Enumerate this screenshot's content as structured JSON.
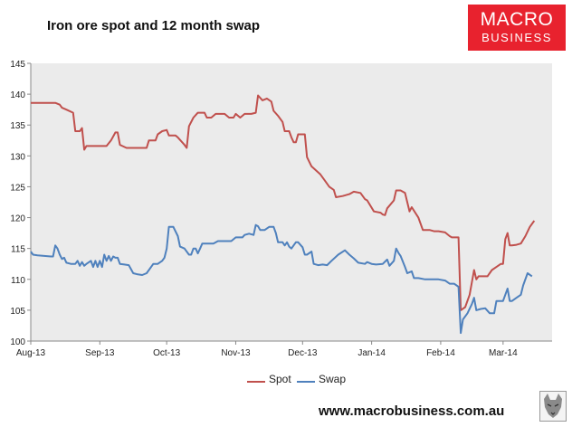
{
  "title": "Iron ore spot and 12 month swap",
  "logo": {
    "line1": "MACRO",
    "line2": "BUSINESS",
    "color": "#e8222e"
  },
  "footer": {
    "url": "www.macrobusiness.com.au",
    "icon": "wolf-icon"
  },
  "chart_data": {
    "type": "line",
    "title": "Iron ore spot and 12 month swap",
    "xlabel": "",
    "ylabel": "",
    "ylim": [
      100,
      145
    ],
    "yticks": [
      "145",
      "140",
      "135",
      "130",
      "125",
      "120",
      "115",
      "110",
      "105",
      "100"
    ],
    "xticks": [
      "Aug-13",
      "Sep-13",
      "Oct-13",
      "Nov-13",
      "Dec-13",
      "Jan-14",
      "Feb-14",
      "Mar-14"
    ],
    "x_range": [
      "2013-08-01",
      "2014-03-23"
    ],
    "grid": false,
    "legend_position": "bottom",
    "plot_background": "#ebebeb",
    "series": [
      {
        "name": "Spot",
        "color": "#c0504d",
        "points": [
          [
            "2013-08-01",
            138.6
          ],
          [
            "2013-08-05",
            138.6
          ],
          [
            "2013-08-09",
            138.6
          ],
          [
            "2013-08-12",
            138.6
          ],
          [
            "2013-08-14",
            138.3
          ],
          [
            "2013-08-15",
            137.8
          ],
          [
            "2013-08-17",
            137.5
          ],
          [
            "2013-08-20",
            137.0
          ],
          [
            "2013-08-21",
            134.0
          ],
          [
            "2013-08-23",
            134.0
          ],
          [
            "2013-08-24",
            134.5
          ],
          [
            "2013-08-25",
            131.0
          ],
          [
            "2013-08-26",
            131.6
          ],
          [
            "2013-08-30",
            131.6
          ],
          [
            "2013-09-04",
            131.6
          ],
          [
            "2013-09-06",
            132.5
          ],
          [
            "2013-09-08",
            133.8
          ],
          [
            "2013-09-09",
            133.8
          ],
          [
            "2013-09-10",
            131.8
          ],
          [
            "2013-09-13",
            131.3
          ],
          [
            "2013-09-18",
            131.3
          ],
          [
            "2013-09-22",
            131.3
          ],
          [
            "2013-09-23",
            132.5
          ],
          [
            "2013-09-26",
            132.5
          ],
          [
            "2013-09-27",
            133.5
          ],
          [
            "2013-09-29",
            134.0
          ],
          [
            "2013-10-01",
            134.2
          ],
          [
            "2013-10-02",
            133.3
          ],
          [
            "2013-10-05",
            133.3
          ],
          [
            "2013-10-06",
            133.0
          ],
          [
            "2013-10-09",
            131.8
          ],
          [
            "2013-10-10",
            131.3
          ],
          [
            "2013-10-11",
            134.8
          ],
          [
            "2013-10-13",
            136.2
          ],
          [
            "2013-10-15",
            137.0
          ],
          [
            "2013-10-18",
            137.0
          ],
          [
            "2013-10-19",
            136.2
          ],
          [
            "2013-10-21",
            136.2
          ],
          [
            "2013-10-23",
            136.8
          ],
          [
            "2013-10-27",
            136.8
          ],
          [
            "2013-10-29",
            136.2
          ],
          [
            "2013-10-31",
            136.2
          ],
          [
            "2013-11-01",
            136.8
          ],
          [
            "2013-11-03",
            136.2
          ],
          [
            "2013-11-05",
            136.8
          ],
          [
            "2013-11-08",
            136.8
          ],
          [
            "2013-11-10",
            137.0
          ],
          [
            "2013-11-11",
            139.8
          ],
          [
            "2013-11-13",
            139.0
          ],
          [
            "2013-11-15",
            139.3
          ],
          [
            "2013-11-17",
            138.8
          ],
          [
            "2013-11-18",
            137.3
          ],
          [
            "2013-11-20",
            136.5
          ],
          [
            "2013-11-22",
            135.5
          ],
          [
            "2013-11-23",
            134.0
          ],
          [
            "2013-11-25",
            134.0
          ],
          [
            "2013-11-26",
            133.0
          ],
          [
            "2013-11-27",
            132.2
          ],
          [
            "2013-11-28",
            132.2
          ],
          [
            "2013-11-29",
            133.5
          ],
          [
            "2013-12-02",
            133.5
          ],
          [
            "2013-12-03",
            129.8
          ],
          [
            "2013-12-05",
            128.3
          ],
          [
            "2013-12-09",
            127.0
          ],
          [
            "2013-12-11",
            126.0
          ],
          [
            "2013-12-13",
            125.0
          ],
          [
            "2013-12-15",
            124.5
          ],
          [
            "2013-12-16",
            123.3
          ],
          [
            "2013-12-19",
            123.5
          ],
          [
            "2013-12-22",
            123.8
          ],
          [
            "2013-12-24",
            124.2
          ],
          [
            "2013-12-27",
            124.0
          ],
          [
            "2013-12-29",
            123.0
          ],
          [
            "2013-12-30",
            122.8
          ],
          [
            "2014-01-02",
            121.0
          ],
          [
            "2014-01-05",
            120.8
          ],
          [
            "2014-01-06",
            120.5
          ],
          [
            "2014-01-07",
            120.4
          ],
          [
            "2014-01-08",
            121.5
          ],
          [
            "2014-01-11",
            122.8
          ],
          [
            "2014-01-12",
            124.4
          ],
          [
            "2014-01-14",
            124.4
          ],
          [
            "2014-01-16",
            124.0
          ],
          [
            "2014-01-18",
            121.0
          ],
          [
            "2014-01-19",
            121.7
          ],
          [
            "2014-01-22",
            120.0
          ],
          [
            "2014-01-24",
            118.0
          ],
          [
            "2014-01-27",
            118.0
          ],
          [
            "2014-01-29",
            117.8
          ],
          [
            "2014-01-31",
            117.8
          ],
          [
            "2014-02-03",
            117.6
          ],
          [
            "2014-02-05",
            117.0
          ],
          [
            "2014-02-06",
            116.8
          ],
          [
            "2014-02-09",
            116.8
          ],
          [
            "2014-02-10",
            105.0
          ],
          [
            "2014-02-12",
            105.5
          ],
          [
            "2014-02-14",
            107.5
          ],
          [
            "2014-02-16",
            111.5
          ],
          [
            "2014-02-17",
            110.0
          ],
          [
            "2014-02-18",
            110.5
          ],
          [
            "2014-02-20",
            110.5
          ],
          [
            "2014-02-22",
            110.5
          ],
          [
            "2014-02-24",
            111.5
          ],
          [
            "2014-02-26",
            112.0
          ],
          [
            "2014-02-28",
            112.5
          ],
          [
            "2014-03-01",
            112.5
          ],
          [
            "2014-03-02",
            116.5
          ],
          [
            "2014-03-03",
            117.5
          ],
          [
            "2014-03-04",
            115.5
          ],
          [
            "2014-03-05",
            115.5
          ],
          [
            "2014-03-07",
            115.6
          ],
          [
            "2014-03-09",
            115.8
          ],
          [
            "2014-03-11",
            117.0
          ],
          [
            "2014-03-13",
            118.5
          ],
          [
            "2014-03-15",
            119.5
          ]
        ]
      },
      {
        "name": "Swap",
        "color": "#4f81bd",
        "points": [
          [
            "2013-08-01",
            114.5
          ],
          [
            "2013-08-02",
            114.0
          ],
          [
            "2013-08-04",
            113.9
          ],
          [
            "2013-08-07",
            113.8
          ],
          [
            "2013-08-10",
            113.7
          ],
          [
            "2013-08-11",
            113.7
          ],
          [
            "2013-08-12",
            115.5
          ],
          [
            "2013-08-13",
            115.0
          ],
          [
            "2013-08-14",
            114.0
          ],
          [
            "2013-08-15",
            113.3
          ],
          [
            "2013-08-16",
            113.5
          ],
          [
            "2013-08-17",
            112.7
          ],
          [
            "2013-08-19",
            112.5
          ],
          [
            "2013-08-21",
            112.5
          ],
          [
            "2013-08-22",
            113.0
          ],
          [
            "2013-08-23",
            112.2
          ],
          [
            "2013-08-24",
            112.8
          ],
          [
            "2013-08-25",
            112.2
          ],
          [
            "2013-08-26",
            112.5
          ],
          [
            "2013-08-28",
            113.0
          ],
          [
            "2013-08-29",
            112.0
          ],
          [
            "2013-08-30",
            113.0
          ],
          [
            "2013-08-31",
            112.0
          ],
          [
            "2013-09-01",
            113.0
          ],
          [
            "2013-09-02",
            112.0
          ],
          [
            "2013-09-03",
            114.0
          ],
          [
            "2013-09-04",
            113.0
          ],
          [
            "2013-09-05",
            113.8
          ],
          [
            "2013-09-06",
            113.0
          ],
          [
            "2013-09-07",
            113.7
          ],
          [
            "2013-09-08",
            113.5
          ],
          [
            "2013-09-09",
            113.5
          ],
          [
            "2013-09-10",
            112.5
          ],
          [
            "2013-09-12",
            112.4
          ],
          [
            "2013-09-14",
            112.3
          ],
          [
            "2013-09-16",
            111.0
          ],
          [
            "2013-09-18",
            110.8
          ],
          [
            "2013-09-20",
            110.7
          ],
          [
            "2013-09-22",
            111.0
          ],
          [
            "2013-09-25",
            112.5
          ],
          [
            "2013-09-27",
            112.5
          ],
          [
            "2013-09-29",
            113.0
          ],
          [
            "2013-09-30",
            113.5
          ],
          [
            "2013-10-01",
            115.0
          ],
          [
            "2013-10-02",
            118.5
          ],
          [
            "2013-10-04",
            118.5
          ],
          [
            "2013-10-06",
            117.0
          ],
          [
            "2013-10-07",
            115.3
          ],
          [
            "2013-10-09",
            115.0
          ],
          [
            "2013-10-11",
            114.0
          ],
          [
            "2013-10-12",
            114.0
          ],
          [
            "2013-10-13",
            115.0
          ],
          [
            "2013-10-14",
            115.0
          ],
          [
            "2013-10-15",
            114.2
          ],
          [
            "2013-10-16",
            115.0
          ],
          [
            "2013-10-17",
            115.8
          ],
          [
            "2013-10-19",
            115.8
          ],
          [
            "2013-10-22",
            115.8
          ],
          [
            "2013-10-24",
            116.2
          ],
          [
            "2013-10-26",
            116.2
          ],
          [
            "2013-10-28",
            116.2
          ],
          [
            "2013-10-30",
            116.2
          ],
          [
            "2013-11-01",
            116.8
          ],
          [
            "2013-11-04",
            116.8
          ],
          [
            "2013-11-05",
            117.2
          ],
          [
            "2013-11-07",
            117.4
          ],
          [
            "2013-11-09",
            117.2
          ],
          [
            "2013-11-10",
            118.8
          ],
          [
            "2013-11-11",
            118.6
          ],
          [
            "2013-11-12",
            118.0
          ],
          [
            "2013-11-14",
            118.0
          ],
          [
            "2013-11-16",
            118.5
          ],
          [
            "2013-11-18",
            118.5
          ],
          [
            "2013-11-19",
            117.5
          ],
          [
            "2013-11-20",
            116.0
          ],
          [
            "2013-11-22",
            116.0
          ],
          [
            "2013-11-23",
            115.5
          ],
          [
            "2013-11-24",
            116.0
          ],
          [
            "2013-11-25",
            115.3
          ],
          [
            "2013-11-26",
            115.0
          ],
          [
            "2013-11-28",
            116.0
          ],
          [
            "2013-11-29",
            116.0
          ],
          [
            "2013-12-01",
            115.2
          ],
          [
            "2013-12-02",
            114.0
          ],
          [
            "2013-12-03",
            114.0
          ],
          [
            "2013-12-05",
            114.5
          ],
          [
            "2013-12-06",
            112.5
          ],
          [
            "2013-12-08",
            112.3
          ],
          [
            "2013-12-10",
            112.4
          ],
          [
            "2013-12-12",
            112.3
          ],
          [
            "2013-12-14",
            113.0
          ],
          [
            "2013-12-17",
            114.0
          ],
          [
            "2013-12-20",
            114.7
          ],
          [
            "2013-12-22",
            114.0
          ],
          [
            "2013-12-24",
            113.4
          ],
          [
            "2013-12-26",
            112.7
          ],
          [
            "2013-12-29",
            112.5
          ],
          [
            "2013-12-30",
            112.8
          ],
          [
            "2014-01-01",
            112.5
          ],
          [
            "2014-01-03",
            112.4
          ],
          [
            "2014-01-06",
            112.5
          ],
          [
            "2014-01-08",
            113.2
          ],
          [
            "2014-01-09",
            112.2
          ],
          [
            "2014-01-11",
            113.0
          ],
          [
            "2014-01-12",
            115.0
          ],
          [
            "2014-01-13",
            114.3
          ],
          [
            "2014-01-14",
            113.8
          ],
          [
            "2014-01-16",
            112.0
          ],
          [
            "2014-01-17",
            111.0
          ],
          [
            "2014-01-19",
            111.3
          ],
          [
            "2014-01-20",
            110.2
          ],
          [
            "2014-01-22",
            110.2
          ],
          [
            "2014-01-25",
            110.0
          ],
          [
            "2014-01-27",
            110.0
          ],
          [
            "2014-01-29",
            110.0
          ],
          [
            "2014-01-31",
            110.0
          ],
          [
            "2014-02-03",
            109.8
          ],
          [
            "2014-02-05",
            109.3
          ],
          [
            "2014-02-07",
            109.3
          ],
          [
            "2014-02-09",
            108.8
          ],
          [
            "2014-02-10",
            101.3
          ],
          [
            "2014-02-11",
            103.5
          ],
          [
            "2014-02-13",
            104.5
          ],
          [
            "2014-02-15",
            106.0
          ],
          [
            "2014-02-16",
            107.0
          ],
          [
            "2014-02-17",
            105.0
          ],
          [
            "2014-02-19",
            105.2
          ],
          [
            "2014-02-21",
            105.3
          ],
          [
            "2014-02-23",
            104.5
          ],
          [
            "2014-02-25",
            104.5
          ],
          [
            "2014-02-26",
            106.5
          ],
          [
            "2014-02-28",
            106.5
          ],
          [
            "2014-03-01",
            106.5
          ],
          [
            "2014-03-03",
            108.5
          ],
          [
            "2014-03-04",
            106.5
          ],
          [
            "2014-03-05",
            106.5
          ],
          [
            "2014-03-07",
            107.0
          ],
          [
            "2014-03-09",
            107.5
          ],
          [
            "2014-03-10",
            109.0
          ],
          [
            "2014-03-12",
            111.0
          ],
          [
            "2014-03-14",
            110.5
          ]
        ]
      }
    ]
  }
}
